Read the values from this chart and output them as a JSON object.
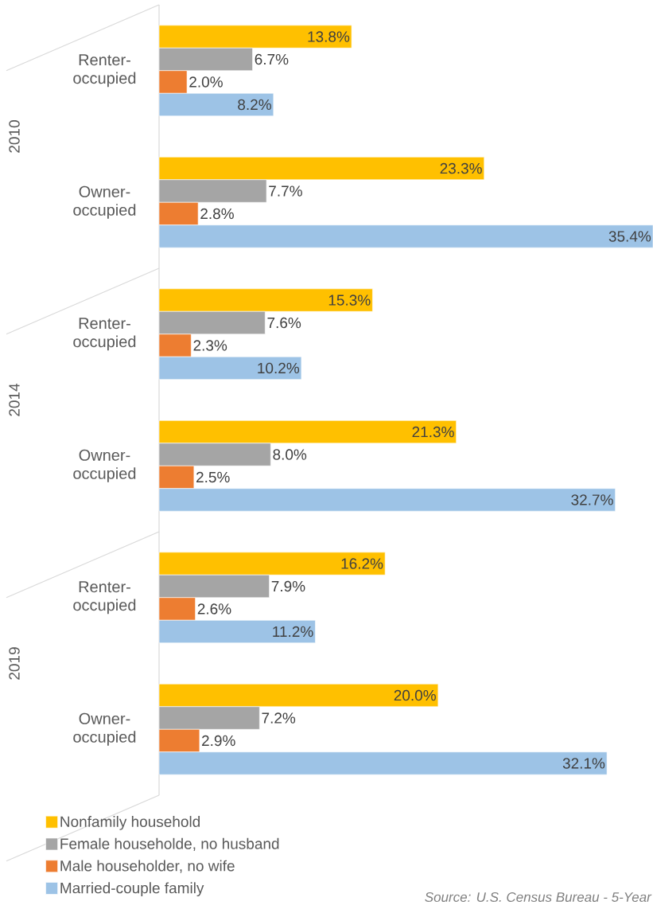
{
  "chart_data": {
    "type": "bar",
    "orientation": "horizontal",
    "categories": [
      "Renter-occupied",
      "Owner-occupied",
      "Renter-occupied",
      "Owner-occupied",
      "Renter-occupied",
      "Owner-occupied"
    ],
    "series": [
      {
        "name": "Nonfamily household",
        "color": "#ffc000",
        "values": [
          13.8,
          23.3,
          15.3,
          21.3,
          16.2,
          20.0
        ],
        "value_labels": [
          "13.8%",
          "23.3%",
          "15.3%",
          "21.3%",
          "16.2%",
          "20.0%"
        ]
      },
      {
        "name": "Female householde, no husband",
        "color": "#a5a5a5",
        "values": [
          6.7,
          7.7,
          7.6,
          8.0,
          7.9,
          7.2
        ],
        "value_labels": [
          "6.7%",
          "7.7%",
          "7.6%",
          "8.0%",
          "7.9%",
          "7.2%"
        ]
      },
      {
        "name": "Male householder, no wife",
        "color": "#ed7d31",
        "values": [
          2.0,
          2.8,
          2.3,
          2.5,
          2.6,
          2.9
        ],
        "value_labels": [
          "2.0%",
          "2.8%",
          "2.3%",
          "2.5%",
          "2.6%",
          "2.9%"
        ]
      },
      {
        "name": "Married-couple family",
        "color": "#9dc3e6",
        "values": [
          8.2,
          35.4,
          10.2,
          32.7,
          11.2,
          32.1
        ],
        "value_labels": [
          "8.2%",
          "35.4%",
          "10.2%",
          "32.7%",
          "11.2%",
          "32.1%"
        ]
      }
    ],
    "annotations": [
      "2010",
      "2014",
      "2019",
      "Source: U.S. Census Bureau - 5-Year"
    ],
    "legend": "bottom left"
  }
}
